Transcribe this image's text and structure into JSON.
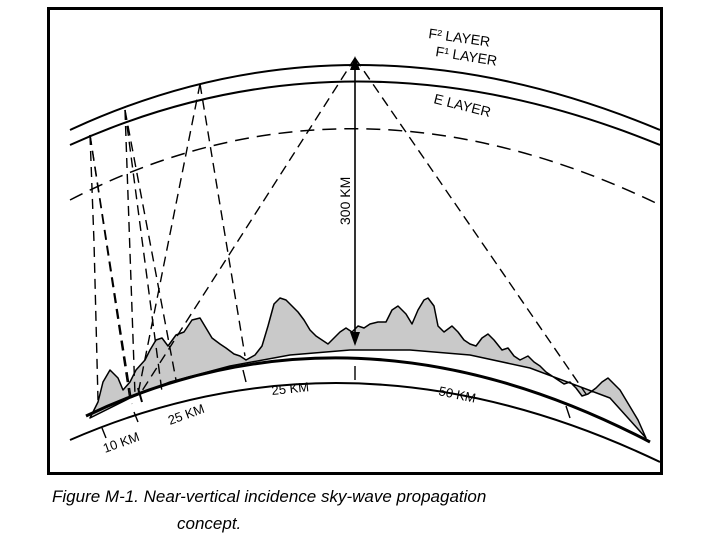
{
  "figure": {
    "layers": {
      "f2": "F² LAYER",
      "f1": "F¹ LAYER",
      "e": "E LAYER"
    },
    "height_label": "300 KM",
    "distances": [
      "10 KM",
      "25 KM",
      "25 KM",
      "50 KM"
    ],
    "caption_line1": "Figure M-1. Near-vertical incidence sky-wave propagation",
    "caption_line2": "concept.",
    "colors": {
      "terrain_fill": "#c9c9c9",
      "ink": "#000000"
    }
  }
}
